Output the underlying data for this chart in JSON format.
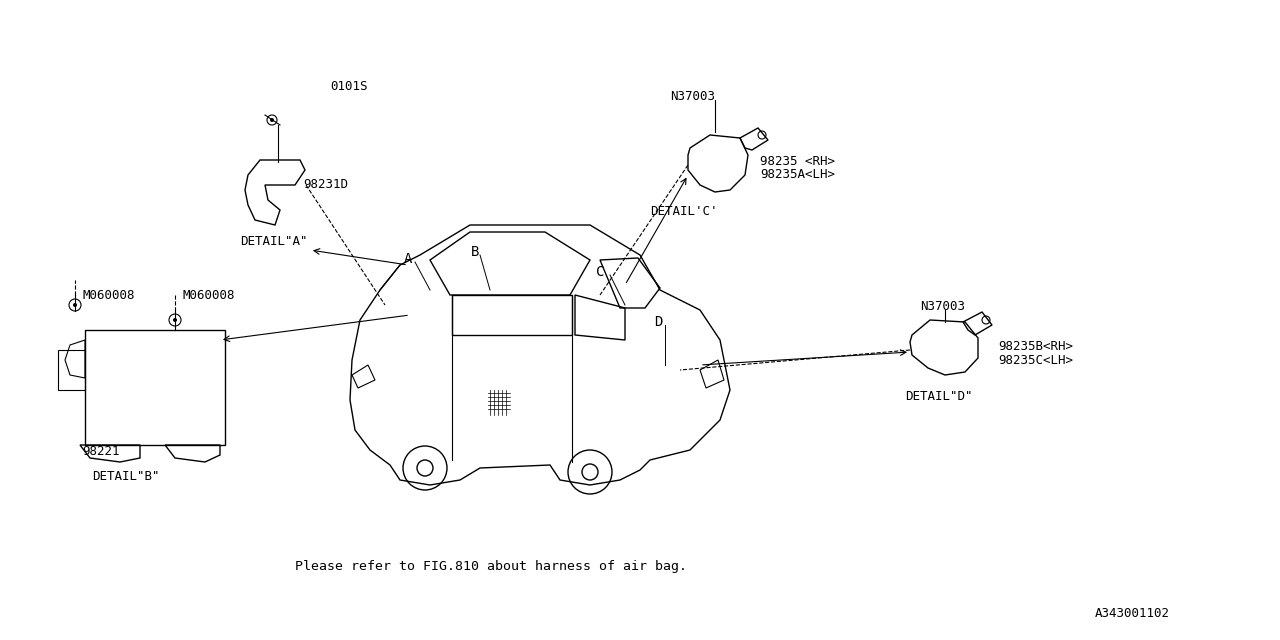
{
  "bg_color": "#ffffff",
  "line_color": "#000000",
  "fig_width": 12.8,
  "fig_height": 6.4,
  "figure_number": "A343001102",
  "footer_text": "Please refer to FIG.810 about harness of air bag.",
  "labels": {
    "part_0101S": "0101S",
    "part_98231D": "98231D",
    "detail_A": "DETAIL\"A\"",
    "part_N37003_top": "N37003",
    "part_98235_RH": "98235 <RH>",
    "part_98235A_LH": "98235A<LH>",
    "detail_C": "DETAIL'C'",
    "part_M060008_left": "M060008",
    "part_M060008_right": "M060008",
    "part_98221": "98221",
    "detail_B": "DETAIL\"B\"",
    "label_A": "A",
    "label_B": "B",
    "label_C": "C",
    "label_D": "D",
    "part_N37003_bot": "N37003",
    "part_98235B_RH": "98235B<RH>",
    "part_98235C_LH": "98235C<LH>",
    "detail_D": "DETAIL\"D\""
  }
}
